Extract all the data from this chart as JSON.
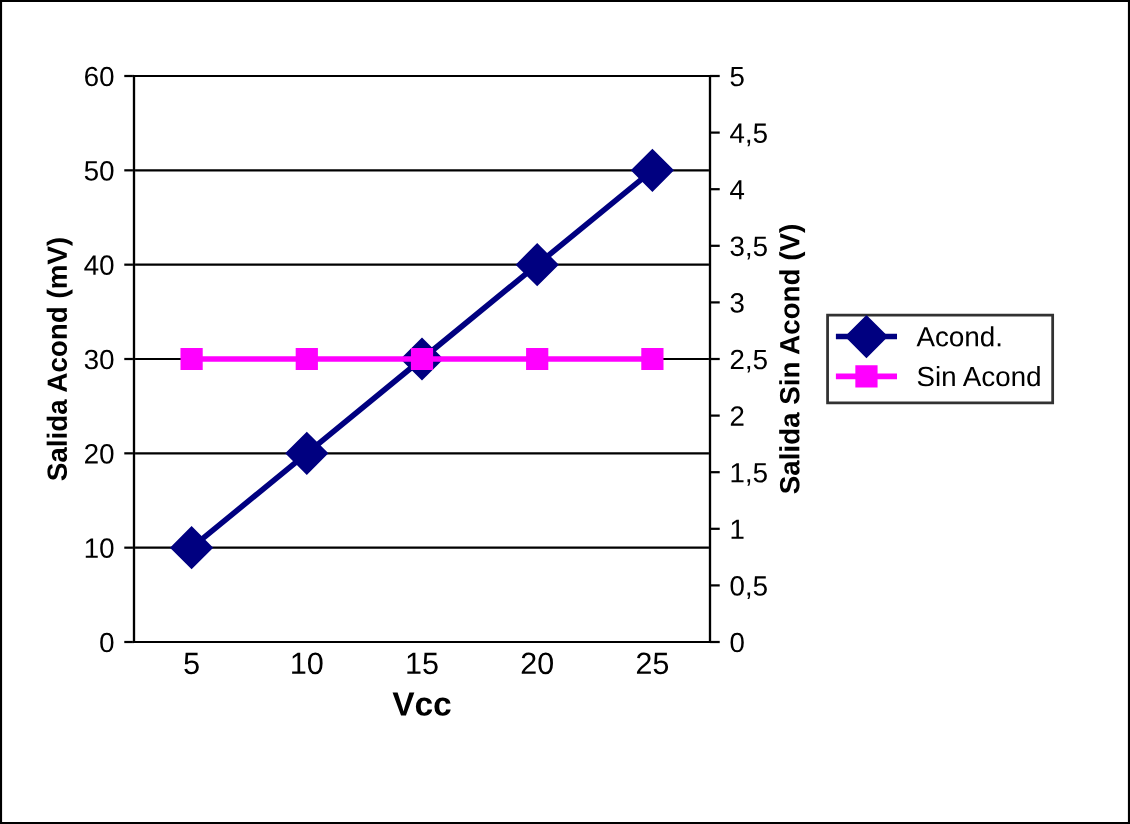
{
  "chart_data": {
    "type": "line",
    "xlabel": "Vcc",
    "ylabel": "Salida Acond (mV)",
    "y2label": "Salida Sin Acond (V)",
    "categories": [
      "5",
      "10",
      "15",
      "20",
      "25"
    ],
    "series": [
      {
        "name": "Acond.",
        "color": "#000080",
        "values": [
          10,
          20,
          30,
          40,
          50
        ],
        "marker": "diamond"
      },
      {
        "name": "Sin Acond",
        "color": "#ff00ff",
        "values": [
          2.5,
          2.5,
          2.5,
          2.5,
          2.5
        ],
        "axis": "y2",
        "marker": "square"
      }
    ],
    "ylim": [
      0,
      60
    ],
    "yticks": [
      0,
      10,
      20,
      30,
      40,
      50,
      60
    ],
    "y2lim": [
      0,
      5
    ],
    "y2ticks": [
      0,
      {
        "value": 0.5,
        "label": "0,5"
      },
      1,
      {
        "value": 1.5,
        "label": "1,5"
      },
      2,
      {
        "value": 2.5,
        "label": "2,5"
      },
      3,
      {
        "value": 3.5,
        "label": "3,5"
      },
      4,
      {
        "value": 4.5,
        "label": "4,5"
      },
      5
    ],
    "grid": "y",
    "legend": "right",
    "line_style": "solid"
  }
}
